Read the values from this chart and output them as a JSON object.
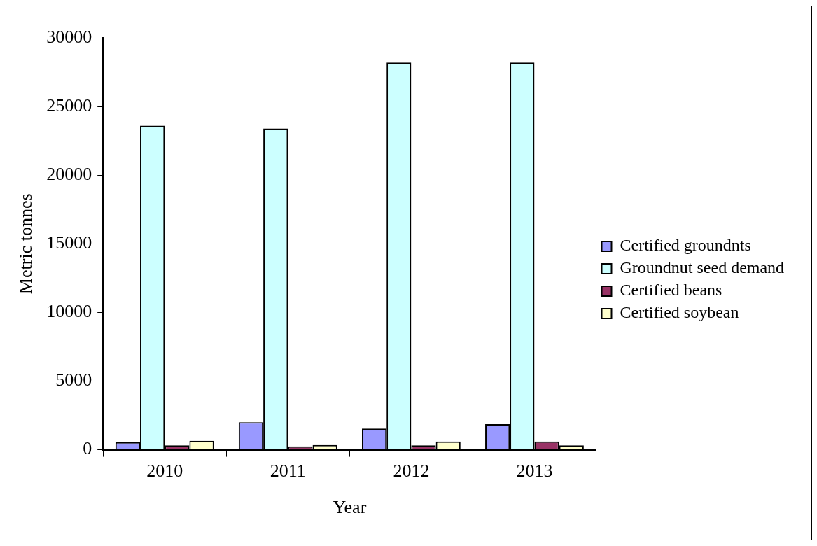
{
  "chart_data": {
    "type": "bar",
    "xlabel": "Year",
    "ylabel": "Metric tonnes",
    "categories": [
      "2010",
      "2011",
      "2012",
      "2013"
    ],
    "series": [
      {
        "name": "Certified groundnts",
        "color": "#9999ff",
        "values": [
          550,
          2000,
          1550,
          1870
        ]
      },
      {
        "name": "Groundnut seed demand",
        "color": "#ccffff",
        "values": [
          23600,
          23400,
          28200,
          28200
        ]
      },
      {
        "name": "Certified beans",
        "color": "#993366",
        "values": [
          330,
          250,
          330,
          600
        ]
      },
      {
        "name": "Certified soybean",
        "color": "#ffffcc",
        "values": [
          650,
          350,
          600,
          330
        ]
      }
    ],
    "ylim": [
      0,
      30000
    ],
    "yticks": [
      0,
      5000,
      10000,
      15000,
      20000,
      25000,
      30000
    ],
    "grid": false,
    "legend": "right"
  }
}
